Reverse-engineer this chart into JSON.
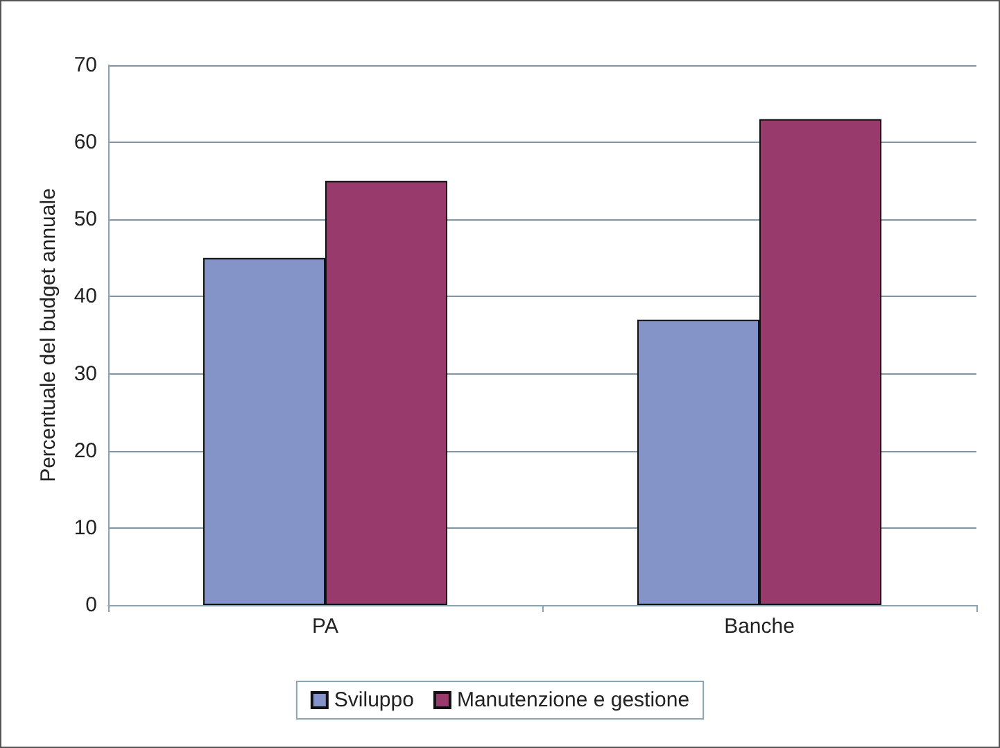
{
  "chart_data": {
    "type": "bar",
    "ylabel": "Percentuale del budget annuale",
    "categories": [
      "PA",
      "Banche"
    ],
    "series": [
      {
        "name": "Sviluppo",
        "color": "#8493c8",
        "values": [
          45,
          37
        ]
      },
      {
        "name": "Manutenzione e gestione",
        "color": "#983a6c",
        "values": [
          55,
          63
        ]
      }
    ],
    "ylim": [
      0,
      70
    ],
    "yticks": [
      0,
      10,
      20,
      30,
      40,
      50,
      60,
      70
    ],
    "grid": "y",
    "legend": "bottom"
  }
}
